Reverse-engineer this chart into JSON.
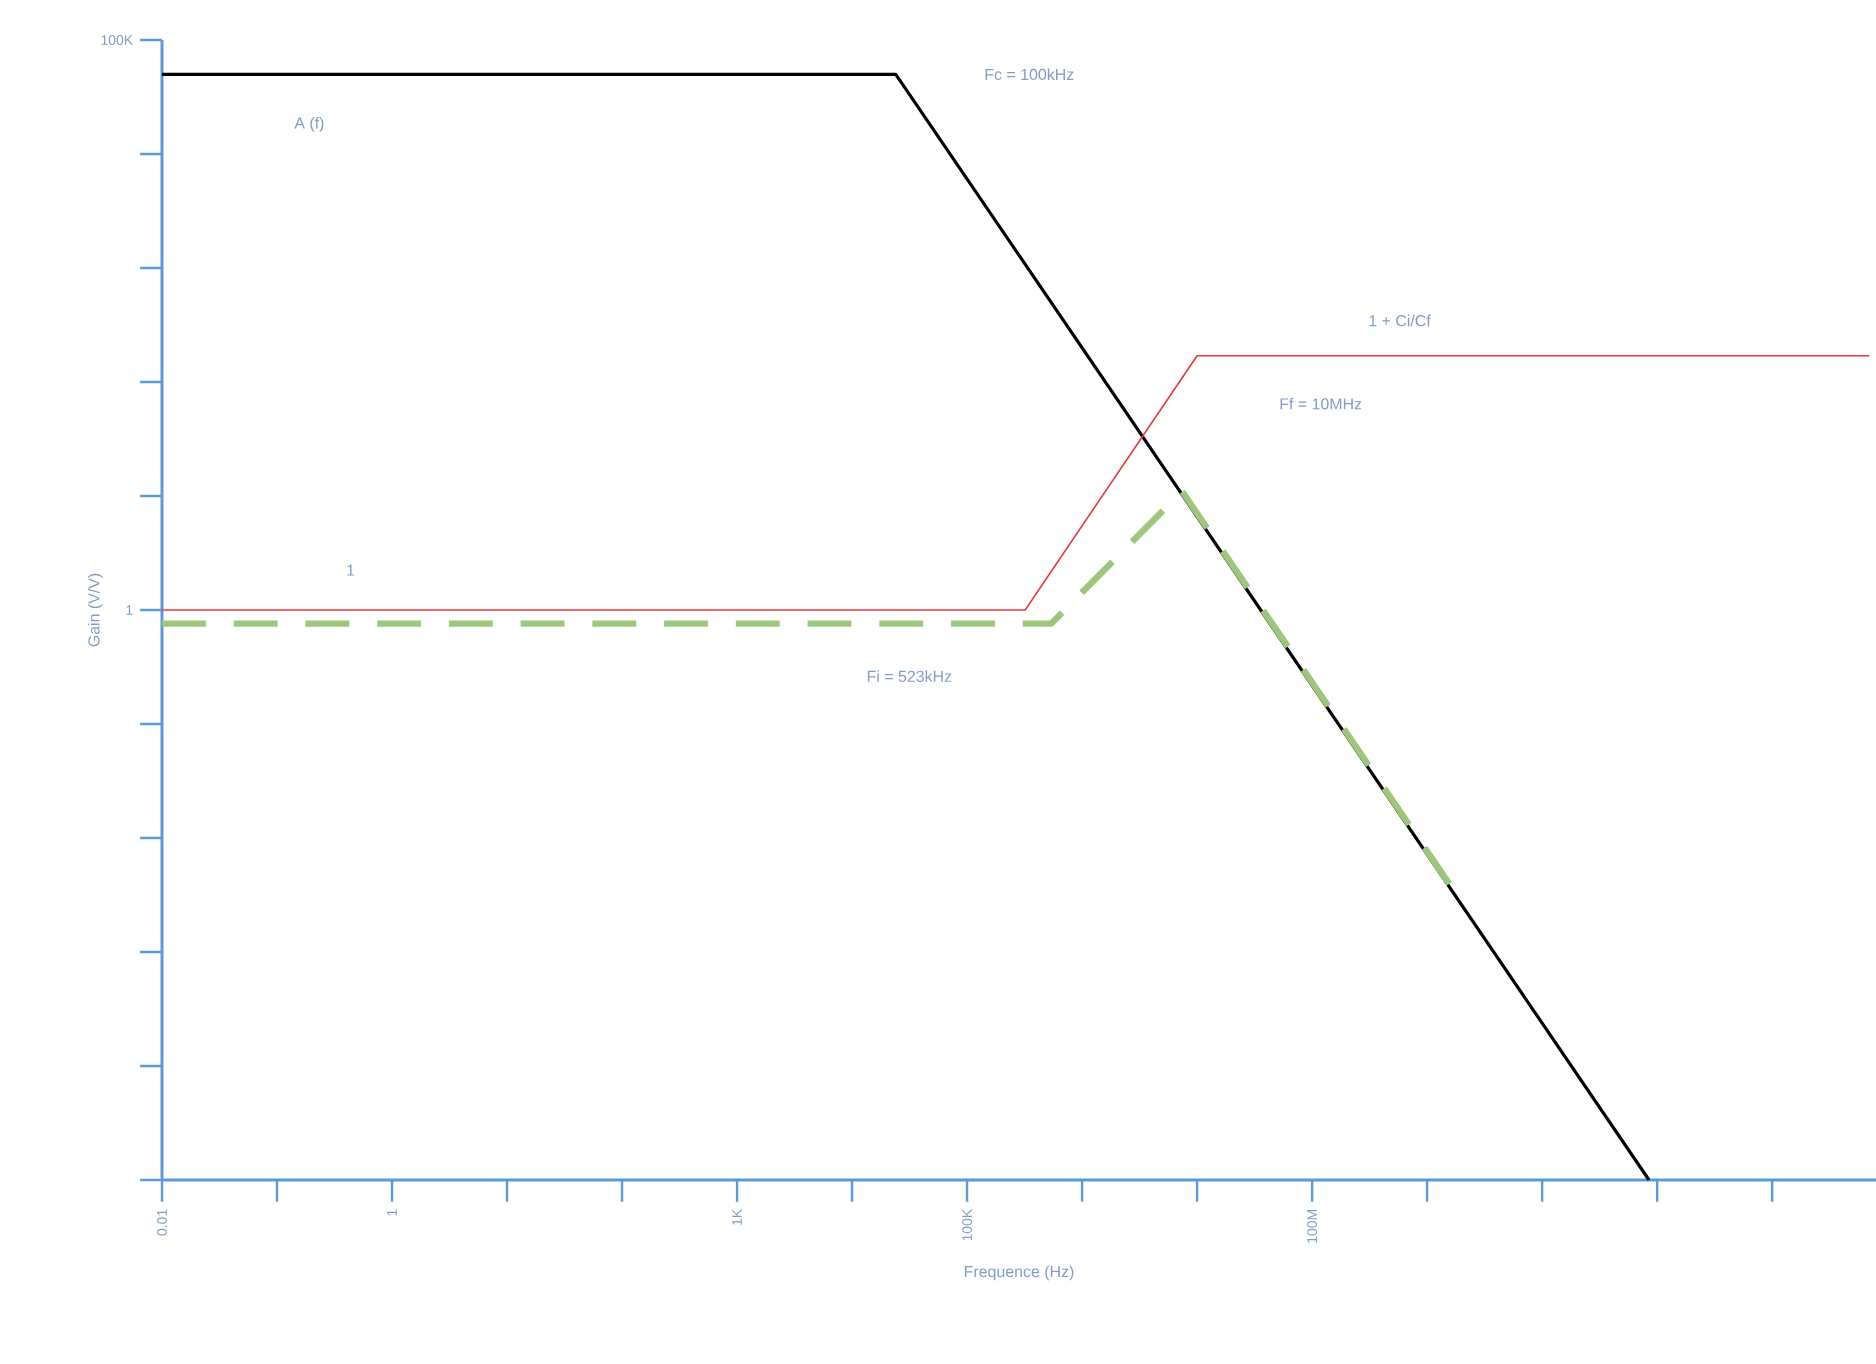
{
  "chart_data": {
    "type": "line",
    "xlabel": "Frequence (Hz)",
    "ylabel": "Gain (V/V)",
    "log": "xy",
    "xlim": [
      0.01,
      8000000000000.0
    ],
    "ylim": [
      1e-05,
      100000
    ],
    "xticks": [
      0.01,
      {
        "value": 0.1,
        "label": null
      },
      1,
      {
        "value": 10,
        "label": null
      },
      {
        "value": 100,
        "label": null
      },
      {
        "value": 1000,
        "label": "1K"
      },
      {
        "value": 10000,
        "label": null
      },
      {
        "value": 100000,
        "label": "100K"
      },
      {
        "value": 1000000,
        "label": null
      },
      {
        "value": 10000000,
        "label": null
      },
      {
        "value": 100000000,
        "label": "100M"
      },
      {
        "value": 1000000000,
        "label": null
      },
      {
        "value": 10000000000,
        "label": null
      },
      {
        "value": 100000000000,
        "label": null
      },
      {
        "value": 1000000000000,
        "label": null
      }
    ],
    "yticks": [
      {
        "value": 1e-05,
        "label": null
      },
      {
        "value": 0.0001,
        "label": null
      },
      {
        "value": 0.001,
        "label": null
      },
      {
        "value": 0.01,
        "label": null
      },
      {
        "value": 0.1,
        "label": null
      },
      1,
      {
        "value": 10,
        "label": null
      },
      {
        "value": 100,
        "label": null
      },
      {
        "value": 1000,
        "label": null
      },
      {
        "value": 10000,
        "label": null
      },
      {
        "value": 100000,
        "label": "100K"
      }
    ],
    "series": [
      {
        "color": "#000000",
        "line_style": "solid",
        "x": [
          0.01,
          24000,
          85000000000
        ],
        "values": [
          50000,
          50000,
          1e-05
        ]
      },
      {
        "color": "#e8383d",
        "line_style": "solid",
        "x": [
          0.01,
          320000,
          10000000,
          7000000000000
        ],
        "values": [
          1,
          1,
          170,
          170
        ]
      },
      {
        "color": "#9dc77c",
        "line_style": "dashed",
        "x": [
          0.01,
          540000,
          7400000,
          1800000000
        ],
        "values": [
          0.76,
          0.76,
          11,
          0.0032
        ]
      }
    ],
    "annotations": [
      "A (f)",
      "Fc = 100kHz",
      "1 + Ci/Cf",
      "Ff = 10MHz",
      "1",
      "Fi = 523kHz"
    ]
  }
}
